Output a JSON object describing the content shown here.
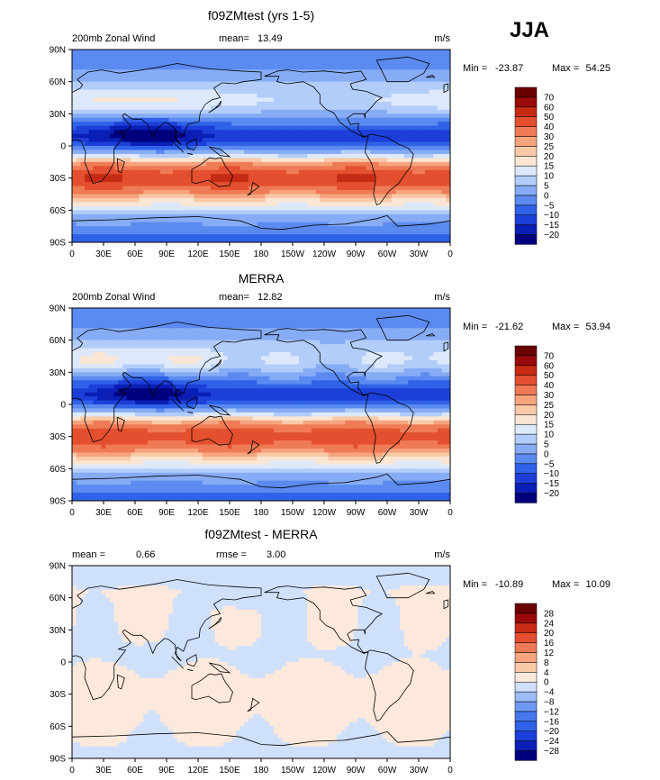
{
  "season": "JJA",
  "units": "m/s",
  "x_ticks": [
    "0",
    "30E",
    "60E",
    "90E",
    "120E",
    "150E",
    "180",
    "150W",
    "120W",
    "90W",
    "60W",
    "30W",
    "0"
  ],
  "y_ticks": [
    "90N",
    "60N",
    "30N",
    "0",
    "30S",
    "60S",
    "90S"
  ],
  "chart_data": [
    {
      "type": "heatmap",
      "title": "f09ZMtest (yrs 1-5)",
      "variable_label": "200mb Zonal Wind",
      "stat1_label": "mean=",
      "stat1_value": "13.49",
      "stat2_label": "",
      "stat2_value": "",
      "units": "m/s",
      "min_label": "Min = ",
      "min_value": "-23.87",
      "max_label": "Max = ",
      "max_value": "54.25",
      "field": "model",
      "levels": [
        -20,
        -15,
        -10,
        -5,
        0,
        5,
        10,
        15,
        20,
        25,
        30,
        40,
        50,
        60,
        70
      ],
      "colors": [
        "#00007f",
        "#0a1fb5",
        "#1d3fd9",
        "#2f62e8",
        "#5b8af0",
        "#86acf5",
        "#b2cdf9",
        "#dde9fb",
        "#fbe6d3",
        "#f9c9a8",
        "#f5a47e",
        "#ef7b56",
        "#e4502f",
        "#c72b14",
        "#9b0a0a",
        "#6a0000"
      ]
    },
    {
      "type": "heatmap",
      "title": "MERRA",
      "variable_label": "200mb Zonal Wind",
      "stat1_label": "mean=",
      "stat1_value": "12.82",
      "stat2_label": "",
      "stat2_value": "",
      "units": "m/s",
      "min_label": "Min = ",
      "min_value": "-21.62",
      "max_label": "Max = ",
      "max_value": "53.94",
      "field": "obs",
      "levels": [
        -20,
        -15,
        -10,
        -5,
        0,
        5,
        10,
        15,
        20,
        25,
        30,
        40,
        50,
        60,
        70
      ],
      "colors": [
        "#00007f",
        "#0a1fb5",
        "#1d3fd9",
        "#2f62e8",
        "#5b8af0",
        "#86acf5",
        "#b2cdf9",
        "#dde9fb",
        "#fbe6d3",
        "#f9c9a8",
        "#f5a47e",
        "#ef7b56",
        "#e4502f",
        "#c72b14",
        "#9b0a0a",
        "#6a0000"
      ]
    },
    {
      "type": "heatmap",
      "title": "f09ZMtest - MERRA",
      "variable_label": "",
      "stat1_label": "mean =",
      "stat1_value": "0.66",
      "stat2_label": "rmse =",
      "stat2_value": "3.00",
      "units": "m/s",
      "min_label": "Min = ",
      "min_value": "-10.89",
      "max_label": "Max = ",
      "max_value": "10.09",
      "field": "diff",
      "levels": [
        -28,
        -24,
        -20,
        -16,
        -12,
        -8,
        -4,
        0,
        4,
        8,
        12,
        16,
        20,
        24,
        28
      ],
      "colors": [
        "#00007f",
        "#0a1fb5",
        "#1d3fd9",
        "#2f62e8",
        "#4877ec",
        "#6e99f2",
        "#9bbcf7",
        "#cfe0fb",
        "#fde9dc",
        "#f9c9a8",
        "#f5a47e",
        "#ef7b56",
        "#e4502f",
        "#c72b14",
        "#9b0a0a",
        "#6a0000"
      ]
    }
  ]
}
